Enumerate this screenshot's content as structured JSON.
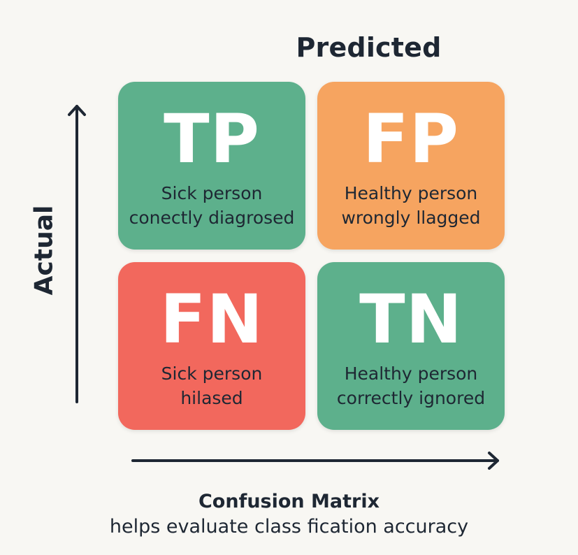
{
  "axes": {
    "top_label": "Predicted",
    "side_label": "Actual"
  },
  "cells": [
    {
      "abbr": "TP",
      "line1": "Sick person",
      "line2": "conectly diagrosed",
      "color": "#5db08c"
    },
    {
      "abbr": "FP",
      "line1": "Healthy person",
      "line2": "wrongly llagged",
      "color": "#f6a460"
    },
    {
      "abbr": "FN",
      "line1": "Sick person",
      "line2": "hilased",
      "color": "#f2685d"
    },
    {
      "abbr": "TN",
      "line1": "Healthy person",
      "line2": "correctly ignored",
      "color": "#5db08c"
    }
  ],
  "footer": {
    "title": "Confusion Matrix",
    "subtitle": "helps evaluate class fication accuracy"
  }
}
